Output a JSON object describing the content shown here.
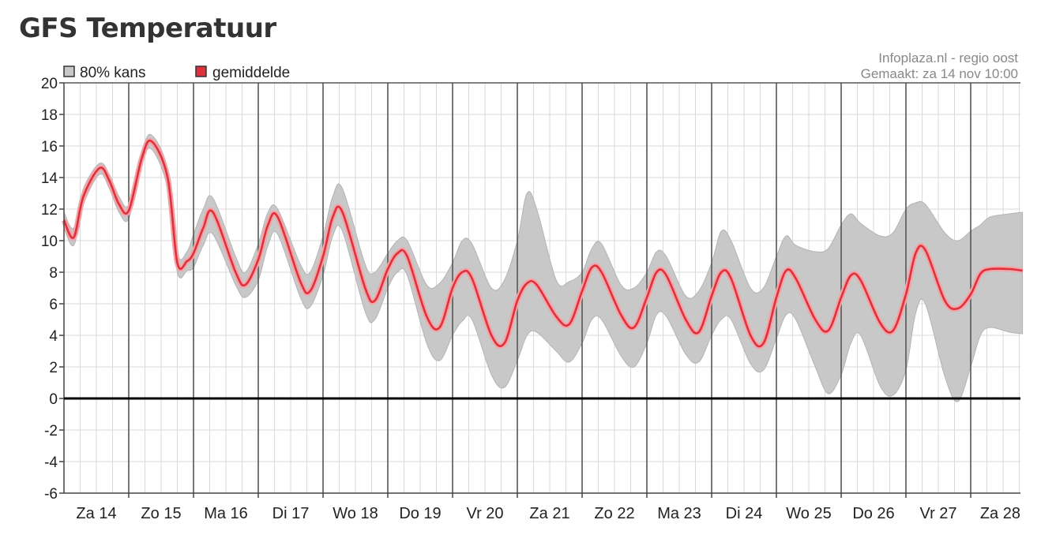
{
  "page_title": "GFS Temperatuur",
  "credits": {
    "source": "Infoplaza.nl - regio oost",
    "made": "Gemaakt: za 14 nov 10:00"
  },
  "colors": {
    "band": "#c8c8c8",
    "band_edge": "#b4b4b4",
    "mean": "#e0303a",
    "mean_glow": "#f2a4a8",
    "grid_minor": "#d9d9d9",
    "grid_major": "#555555",
    "zero_line": "#000000"
  },
  "chart_data": {
    "type": "area",
    "title": "GFS Temperatuur",
    "xlabel": "",
    "ylabel": "",
    "ylim": [
      -6,
      20
    ],
    "yticks": [
      20,
      18,
      16,
      14,
      12,
      10,
      8,
      6,
      4,
      2,
      0,
      -2,
      -4,
      -6
    ],
    "xlim": [
      0,
      14.8
    ],
    "grid": true,
    "legend_position": "top-left",
    "legend": [
      {
        "label": "80% kans",
        "color": "#c8c8c8"
      },
      {
        "label": "gemiddelde",
        "color": "#e0303a"
      }
    ],
    "day_labels": [
      "Za 14",
      "Zo 15",
      "Ma 16",
      "Di 17",
      "Wo 18",
      "Do 19",
      "Vr 20",
      "Za 21",
      "Zo 22",
      "Ma 23",
      "Di 24",
      "Wo 25",
      "Do 26",
      "Vr 27",
      "Za 28"
    ],
    "series": [
      {
        "name": "gemiddelde",
        "x": [
          0,
          0.15,
          0.3,
          0.55,
          0.7,
          0.85,
          1.0,
          1.2,
          1.35,
          1.6,
          1.75,
          1.9,
          2.0,
          2.15,
          2.3,
          2.65,
          2.8,
          3.0,
          3.15,
          3.3,
          3.65,
          3.8,
          4.0,
          4.15,
          4.3,
          4.65,
          4.8,
          5.0,
          5.15,
          5.3,
          5.6,
          5.8,
          6.0,
          6.15,
          6.3,
          6.6,
          6.8,
          7.0,
          7.15,
          7.3,
          7.6,
          7.8,
          8.0,
          8.15,
          8.3,
          8.6,
          8.8,
          9.0,
          9.15,
          9.3,
          9.6,
          9.8,
          10.0,
          10.15,
          10.3,
          10.6,
          10.8,
          11.0,
          11.15,
          11.3,
          11.6,
          11.8,
          12.0,
          12.15,
          12.3,
          12.6,
          12.8,
          13.0,
          13.15,
          13.3,
          13.6,
          13.8,
          14.0,
          14.15,
          14.3,
          14.6,
          14.8
        ],
        "values": [
          11.3,
          10.2,
          12.8,
          14.6,
          13.8,
          12.3,
          11.9,
          15.2,
          16.3,
          14.0,
          8.6,
          8.7,
          9.2,
          10.8,
          11.8,
          8.0,
          7.2,
          8.8,
          11.0,
          11.5,
          7.4,
          6.8,
          9.0,
          11.5,
          11.8,
          7.0,
          6.2,
          8.2,
          9.2,
          9.0,
          5.2,
          4.5,
          7.0,
          8.0,
          7.6,
          4.0,
          3.5,
          6.2,
          7.3,
          7.2,
          5.2,
          4.7,
          6.8,
          8.3,
          8.0,
          5.3,
          4.5,
          6.4,
          8.0,
          7.8,
          5.0,
          4.2,
          6.5,
          8.0,
          7.6,
          4.0,
          3.5,
          6.4,
          8.1,
          7.6,
          5.0,
          4.3,
          6.4,
          7.8,
          7.5,
          4.8,
          4.3,
          6.6,
          9.2,
          9.4,
          6.2,
          5.7,
          6.6,
          7.9,
          8.2,
          8.2,
          8.1
        ]
      },
      {
        "name": "80% kans",
        "x": [
          0,
          0.15,
          0.3,
          0.55,
          0.7,
          0.85,
          1.0,
          1.2,
          1.35,
          1.6,
          1.75,
          1.9,
          2.0,
          2.15,
          2.3,
          2.65,
          2.8,
          3.0,
          3.15,
          3.3,
          3.65,
          3.8,
          4.0,
          4.15,
          4.3,
          4.65,
          4.8,
          5.0,
          5.15,
          5.3,
          5.6,
          5.8,
          6.0,
          6.15,
          6.3,
          6.6,
          6.8,
          7.0,
          7.15,
          7.3,
          7.6,
          7.8,
          8.0,
          8.15,
          8.3,
          8.6,
          8.8,
          9.0,
          9.15,
          9.3,
          9.6,
          9.8,
          10.0,
          10.15,
          10.3,
          10.6,
          10.8,
          11.0,
          11.15,
          11.3,
          11.6,
          11.8,
          12.0,
          12.15,
          12.3,
          12.6,
          12.8,
          13.0,
          13.15,
          13.3,
          13.6,
          13.8,
          14.0,
          14.15,
          14.3,
          14.6,
          14.8
        ],
        "upper": [
          11.8,
          10.8,
          13.3,
          14.9,
          14.2,
          12.8,
          12.3,
          15.6,
          16.7,
          14.5,
          9.2,
          9.3,
          10.4,
          12.0,
          12.7,
          9.0,
          8.0,
          9.8,
          11.8,
          12.0,
          8.5,
          8.0,
          10.3,
          12.8,
          13.3,
          8.5,
          8.0,
          9.2,
          10.0,
          10.0,
          7.2,
          7.3,
          8.6,
          10.0,
          9.8,
          7.0,
          7.5,
          10.0,
          13.0,
          12.0,
          7.5,
          7.4,
          8.0,
          9.5,
          9.8,
          7.2,
          7.0,
          8.0,
          9.3,
          9.0,
          6.5,
          6.8,
          8.6,
          10.6,
          10.0,
          7.0,
          7.0,
          9.0,
          10.3,
          9.7,
          9.3,
          9.5,
          11.0,
          11.7,
          11.1,
          10.3,
          10.5,
          12.0,
          12.4,
          12.3,
          10.5,
          10.0,
          10.6,
          11.0,
          11.5,
          11.7,
          11.8
        ],
        "lower": [
          10.8,
          9.7,
          12.3,
          14.2,
          13.3,
          11.8,
          11.4,
          14.8,
          15.8,
          13.3,
          8.0,
          8.1,
          8.3,
          9.7,
          10.4,
          7.2,
          6.4,
          7.5,
          9.7,
          10.4,
          6.4,
          5.8,
          7.8,
          10.3,
          10.6,
          5.5,
          5.0,
          7.0,
          8.0,
          7.8,
          3.5,
          2.4,
          4.0,
          4.9,
          5.0,
          1.5,
          0.7,
          2.4,
          4.0,
          4.2,
          3.0,
          2.3,
          3.5,
          5.0,
          5.0,
          2.7,
          2.0,
          3.5,
          5.3,
          5.2,
          2.8,
          2.3,
          4.0,
          5.0,
          5.0,
          2.2,
          1.8,
          3.8,
          5.3,
          5.0,
          2.0,
          0.3,
          1.5,
          3.5,
          4.0,
          0.8,
          0.2,
          1.8,
          5.4,
          6.0,
          1.4,
          -0.2,
          2.0,
          4.0,
          4.5,
          4.2,
          4.1
        ]
      }
    ]
  }
}
